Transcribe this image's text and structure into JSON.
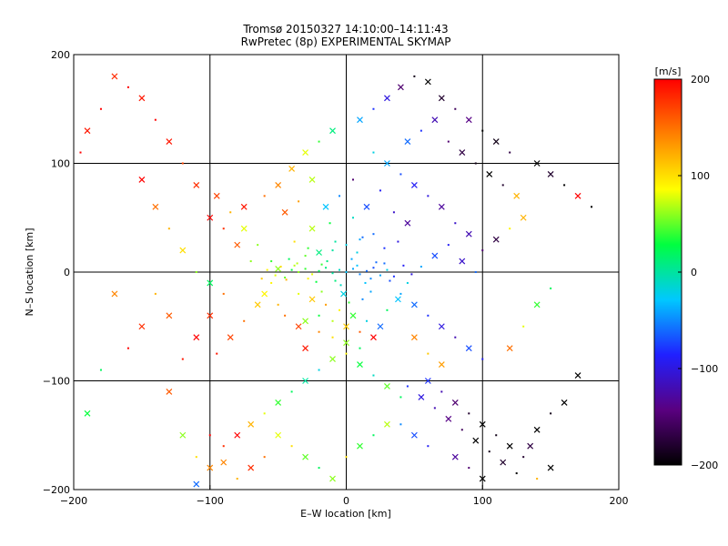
{
  "title": "Tromsø 20150327 14:10:00–14:11:43",
  "subtitle": "RwPretec (8p) EXPERIMENTAL SKYMAP",
  "chart_data": {
    "type": "scatter",
    "xlabel": "E–W location [km]",
    "ylabel": "N–S location [km]",
    "xlim": [
      -200,
      200
    ],
    "ylim": [
      -200,
      200
    ],
    "xticks": [
      -200,
      -100,
      0,
      100,
      200
    ],
    "yticks": [
      -200,
      -100,
      0,
      100,
      200
    ],
    "xtick_labels": [
      "−200",
      "−100",
      "0",
      "100",
      "200"
    ],
    "ytick_labels": [
      "−200",
      "−100",
      "0",
      "100",
      "200"
    ],
    "grid": true,
    "gridlines": [
      -100,
      0,
      100
    ],
    "marker_types": [
      "dot",
      "cross"
    ],
    "colorbar": {
      "label": "[m/s]",
      "min": -200,
      "max": 200,
      "ticks": [
        200,
        100,
        0,
        -100,
        -200
      ],
      "tick_labels": [
        "200",
        "100",
        "0",
        "−100",
        "−200"
      ],
      "colormap": [
        "#000000",
        "#5a0080",
        "#2020ff",
        "#00c8ff",
        "#00ff40",
        "#ffff00",
        "#ff8000",
        "#ff0000"
      ]
    },
    "points": [
      [
        -40,
        2,
        30,
        0
      ],
      [
        -35,
        0,
        60,
        0
      ],
      [
        -30,
        3,
        40,
        0
      ],
      [
        -25,
        -2,
        80,
        0
      ],
      [
        -20,
        1,
        20,
        0
      ],
      [
        -15,
        4,
        10,
        0
      ],
      [
        -10,
        -1,
        0,
        0
      ],
      [
        -5,
        2,
        -10,
        0
      ],
      [
        0,
        0,
        -30,
        0
      ],
      [
        5,
        3,
        -40,
        0
      ],
      [
        10,
        -2,
        -50,
        0
      ],
      [
        15,
        1,
        -60,
        0
      ],
      [
        20,
        4,
        -70,
        0
      ],
      [
        25,
        -3,
        -40,
        0
      ],
      [
        30,
        2,
        -20,
        0
      ],
      [
        -45,
        -5,
        50,
        0
      ],
      [
        -50,
        3,
        60,
        1
      ],
      [
        -38,
        6,
        70,
        0
      ],
      [
        -28,
        -6,
        90,
        0
      ],
      [
        -18,
        7,
        40,
        0
      ],
      [
        -8,
        -8,
        10,
        0
      ],
      [
        8,
        6,
        -30,
        0
      ],
      [
        18,
        -6,
        -50,
        0
      ],
      [
        28,
        8,
        -60,
        0
      ],
      [
        35,
        -4,
        -80,
        0
      ],
      [
        -42,
        12,
        20,
        0
      ],
      [
        -30,
        15,
        50,
        0
      ],
      [
        -20,
        18,
        10,
        1
      ],
      [
        -10,
        20,
        0,
        0
      ],
      [
        0,
        25,
        -20,
        0
      ],
      [
        10,
        30,
        -40,
        0
      ],
      [
        20,
        35,
        -60,
        0
      ],
      [
        -25,
        40,
        70,
        1
      ],
      [
        -12,
        45,
        30,
        0
      ],
      [
        5,
        50,
        -10,
        0
      ],
      [
        -35,
        -20,
        80,
        0
      ],
      [
        -25,
        -25,
        110,
        1
      ],
      [
        -15,
        -30,
        130,
        0
      ],
      [
        -5,
        -35,
        90,
        0
      ],
      [
        5,
        -40,
        40,
        1
      ],
      [
        15,
        -45,
        -20,
        0
      ],
      [
        25,
        -50,
        -60,
        1
      ],
      [
        -45,
        -40,
        150,
        0
      ],
      [
        -35,
        -50,
        170,
        1
      ],
      [
        -20,
        -55,
        140,
        0
      ],
      [
        -10,
        -60,
        100,
        0
      ],
      [
        0,
        -65,
        60,
        1
      ],
      [
        10,
        -70,
        20,
        0
      ],
      [
        -30,
        -70,
        190,
        1
      ],
      [
        -50,
        -30,
        120,
        0
      ],
      [
        -60,
        -20,
        90,
        1
      ],
      [
        -70,
        10,
        60,
        0
      ],
      [
        -80,
        25,
        160,
        1
      ],
      [
        -90,
        40,
        180,
        0
      ],
      [
        -100,
        50,
        200,
        1
      ],
      [
        -75,
        60,
        190,
        1
      ],
      [
        -60,
        70,
        150,
        0
      ],
      [
        -50,
        80,
        140,
        1
      ],
      [
        -40,
        95,
        120,
        1
      ],
      [
        -30,
        110,
        80,
        1
      ],
      [
        -20,
        120,
        40,
        0
      ],
      [
        -10,
        130,
        10,
        1
      ],
      [
        10,
        140,
        -40,
        1
      ],
      [
        20,
        150,
        -80,
        0
      ],
      [
        30,
        160,
        -100,
        1
      ],
      [
        40,
        170,
        -150,
        1
      ],
      [
        50,
        180,
        -190,
        0
      ],
      [
        60,
        175,
        -200,
        1
      ],
      [
        70,
        160,
        -180,
        1
      ],
      [
        80,
        150,
        -160,
        0
      ],
      [
        90,
        140,
        -140,
        1
      ],
      [
        100,
        130,
        -200,
        0
      ],
      [
        110,
        120,
        -190,
        1
      ],
      [
        120,
        110,
        -170,
        0
      ],
      [
        140,
        100,
        -200,
        1
      ],
      [
        150,
        90,
        -180,
        1
      ],
      [
        160,
        80,
        -200,
        0
      ],
      [
        170,
        70,
        200,
        1
      ],
      [
        180,
        60,
        -200,
        0
      ],
      [
        130,
        50,
        120,
        1
      ],
      [
        120,
        40,
        90,
        0
      ],
      [
        110,
        30,
        -170,
        1
      ],
      [
        100,
        20,
        -150,
        0
      ],
      [
        90,
        35,
        -120,
        1
      ],
      [
        80,
        45,
        -110,
        0
      ],
      [
        70,
        60,
        -130,
        1
      ],
      [
        60,
        70,
        -100,
        0
      ],
      [
        50,
        80,
        -90,
        1
      ],
      [
        40,
        90,
        -70,
        0
      ],
      [
        30,
        100,
        -40,
        1
      ],
      [
        20,
        110,
        -20,
        0
      ],
      [
        45,
        120,
        -60,
        1
      ],
      [
        55,
        130,
        -80,
        0
      ],
      [
        65,
        140,
        -120,
        1
      ],
      [
        75,
        120,
        -150,
        0
      ],
      [
        85,
        110,
        -170,
        1
      ],
      [
        95,
        100,
        -190,
        0
      ],
      [
        105,
        90,
        -200,
        1
      ],
      [
        115,
        80,
        -180,
        0
      ],
      [
        125,
        70,
        120,
        1
      ],
      [
        -110,
        80,
        180,
        1
      ],
      [
        -120,
        100,
        170,
        0
      ],
      [
        -130,
        120,
        190,
        1
      ],
      [
        -140,
        140,
        200,
        0
      ],
      [
        -150,
        160,
        190,
        1
      ],
      [
        -160,
        170,
        200,
        0
      ],
      [
        -170,
        180,
        180,
        1
      ],
      [
        -180,
        150,
        200,
        0
      ],
      [
        -190,
        130,
        190,
        1
      ],
      [
        -195,
        110,
        200,
        0
      ],
      [
        -150,
        85,
        200,
        1
      ],
      [
        -140,
        60,
        150,
        1
      ],
      [
        -130,
        40,
        120,
        0
      ],
      [
        -120,
        20,
        100,
        1
      ],
      [
        -110,
        0,
        60,
        0
      ],
      [
        -100,
        -10,
        20,
        1
      ],
      [
        -90,
        -20,
        150,
        0
      ],
      [
        -100,
        -40,
        180,
        1
      ],
      [
        -110,
        -60,
        200,
        1
      ],
      [
        -120,
        -80,
        190,
        0
      ],
      [
        -130,
        -40,
        160,
        1
      ],
      [
        -140,
        -20,
        120,
        0
      ],
      [
        -150,
        -50,
        180,
        1
      ],
      [
        -160,
        -70,
        200,
        0
      ],
      [
        -170,
        -20,
        140,
        1
      ],
      [
        -180,
        -90,
        20,
        0
      ],
      [
        -190,
        -130,
        30,
        1
      ],
      [
        -120,
        -150,
        60,
        1
      ],
      [
        -110,
        -170,
        100,
        0
      ],
      [
        -100,
        -180,
        140,
        1
      ],
      [
        -90,
        -160,
        180,
        0
      ],
      [
        -80,
        -150,
        200,
        1
      ],
      [
        -70,
        -140,
        120,
        1
      ],
      [
        -60,
        -130,
        80,
        0
      ],
      [
        -50,
        -120,
        40,
        1
      ],
      [
        -40,
        -110,
        20,
        0
      ],
      [
        -30,
        -100,
        0,
        1
      ],
      [
        -20,
        -90,
        -20,
        0
      ],
      [
        -10,
        -80,
        60,
        1
      ],
      [
        0,
        -75,
        90,
        0
      ],
      [
        10,
        -85,
        30,
        1
      ],
      [
        20,
        -95,
        -10,
        0
      ],
      [
        30,
        -105,
        50,
        1
      ],
      [
        40,
        -115,
        20,
        0
      ],
      [
        -50,
        -150,
        80,
        1
      ],
      [
        -40,
        -160,
        100,
        0
      ],
      [
        -30,
        -170,
        50,
        1
      ],
      [
        -20,
        -180,
        20,
        0
      ],
      [
        -10,
        -190,
        60,
        1
      ],
      [
        0,
        -170,
        100,
        0
      ],
      [
        10,
        -160,
        40,
        1
      ],
      [
        20,
        -150,
        20,
        0
      ],
      [
        30,
        -140,
        70,
        1
      ],
      [
        -60,
        -170,
        150,
        0
      ],
      [
        -70,
        -180,
        180,
        1
      ],
      [
        -80,
        -190,
        120,
        0
      ],
      [
        -90,
        -175,
        140,
        1
      ],
      [
        -110,
        -195,
        -60,
        1
      ],
      [
        -100,
        -150,
        200,
        0
      ],
      [
        -130,
        -110,
        160,
        1
      ],
      [
        60,
        -100,
        -80,
        1
      ],
      [
        70,
        -110,
        -120,
        0
      ],
      [
        80,
        -120,
        -150,
        1
      ],
      [
        90,
        -130,
        -180,
        0
      ],
      [
        100,
        -140,
        -200,
        1
      ],
      [
        110,
        -150,
        -190,
        0
      ],
      [
        120,
        -160,
        -200,
        1
      ],
      [
        130,
        -170,
        -180,
        0
      ],
      [
        140,
        -145,
        -200,
        1
      ],
      [
        150,
        -130,
        -190,
        0
      ],
      [
        160,
        -120,
        -200,
        1
      ],
      [
        170,
        -95,
        -200,
        1
      ],
      [
        95,
        -155,
        -200,
        1
      ],
      [
        105,
        -165,
        -190,
        0
      ],
      [
        115,
        -175,
        -180,
        1
      ],
      [
        125,
        -185,
        -200,
        0
      ],
      [
        135,
        -160,
        -170,
        1
      ],
      [
        85,
        -145,
        -160,
        0
      ],
      [
        75,
        -135,
        -140,
        1
      ],
      [
        65,
        -125,
        -120,
        0
      ],
      [
        55,
        -115,
        -100,
        1
      ],
      [
        45,
        -105,
        -80,
        0
      ],
      [
        80,
        -170,
        -130,
        1
      ],
      [
        90,
        -180,
        -150,
        0
      ],
      [
        100,
        -190,
        -200,
        1
      ],
      [
        60,
        -160,
        -90,
        0
      ],
      [
        50,
        -150,
        -70,
        1
      ],
      [
        40,
        -140,
        -50,
        0
      ],
      [
        150,
        -180,
        -200,
        1
      ],
      [
        140,
        -190,
        120,
        0
      ],
      [
        40,
        -20,
        -40,
        0
      ],
      [
        50,
        -30,
        -60,
        1
      ],
      [
        60,
        -40,
        -80,
        0
      ],
      [
        70,
        -50,
        -100,
        1
      ],
      [
        80,
        -60,
        -120,
        0
      ],
      [
        90,
        -70,
        -70,
        1
      ],
      [
        100,
        -80,
        -90,
        0
      ],
      [
        45,
        -10,
        -20,
        0
      ],
      [
        55,
        5,
        -40,
        0
      ],
      [
        65,
        15,
        -70,
        1
      ],
      [
        75,
        25,
        -90,
        0
      ],
      [
        85,
        10,
        -110,
        1
      ],
      [
        95,
        0,
        -60,
        0
      ],
      [
        50,
        -60,
        140,
        1
      ],
      [
        60,
        -75,
        110,
        0
      ],
      [
        70,
        -85,
        130,
        1
      ],
      [
        120,
        -70,
        150,
        1
      ],
      [
        130,
        -50,
        80,
        0
      ],
      [
        140,
        -30,
        40,
        1
      ],
      [
        150,
        -15,
        20,
        0
      ],
      [
        -55,
        10,
        40,
        0
      ],
      [
        -65,
        25,
        60,
        0
      ],
      [
        -75,
        40,
        80,
        1
      ],
      [
        -85,
        55,
        120,
        0
      ],
      [
        -95,
        70,
        170,
        1
      ],
      [
        -55,
        -10,
        90,
        0
      ],
      [
        -65,
        -30,
        110,
        1
      ],
      [
        -75,
        -45,
        150,
        0
      ],
      [
        -85,
        -60,
        170,
        1
      ],
      [
        -95,
        -75,
        190,
        0
      ],
      [
        -15,
        60,
        -30,
        1
      ],
      [
        -5,
        70,
        -50,
        0
      ],
      [
        15,
        60,
        -70,
        1
      ],
      [
        25,
        75,
        -90,
        0
      ],
      [
        -25,
        85,
        70,
        1
      ],
      [
        -35,
        65,
        130,
        0
      ],
      [
        -45,
        55,
        160,
        1
      ],
      [
        35,
        55,
        -110,
        0
      ],
      [
        45,
        45,
        -130,
        1
      ],
      [
        5,
        85,
        -150,
        0
      ],
      [
        -10,
        -45,
        70,
        0
      ],
      [
        0,
        -50,
        110,
        1
      ],
      [
        10,
        -55,
        160,
        0
      ],
      [
        20,
        -60,
        200,
        1
      ],
      [
        -20,
        -40,
        30,
        0
      ],
      [
        -30,
        -45,
        60,
        1
      ],
      [
        30,
        -35,
        20,
        0
      ],
      [
        38,
        -25,
        -30,
        1
      ],
      [
        12,
        -25,
        -50,
        0
      ],
      [
        -2,
        -20,
        -20,
        1
      ],
      [
        -48,
        5,
        100,
        0
      ],
      [
        -52,
        -3,
        80,
        0
      ],
      [
        -44,
        -7,
        120,
        0
      ],
      [
        -36,
        8,
        70,
        0
      ],
      [
        -22,
        -9,
        30,
        0
      ],
      [
        -14,
        10,
        10,
        0
      ],
      [
        -4,
        -12,
        -10,
        0
      ],
      [
        4,
        12,
        -40,
        0
      ],
      [
        14,
        -10,
        -30,
        0
      ],
      [
        22,
        9,
        -60,
        0
      ],
      [
        32,
        -8,
        -70,
        0
      ],
      [
        42,
        6,
        -90,
        0
      ],
      [
        -58,
        2,
        90,
        0
      ],
      [
        -62,
        -6,
        110,
        0
      ],
      [
        48,
        -2,
        -100,
        0
      ],
      [
        -28,
        22,
        40,
        0
      ],
      [
        -18,
        -18,
        60,
        0
      ],
      [
        8,
        18,
        -20,
        0
      ],
      [
        18,
        -18,
        -40,
        0
      ],
      [
        28,
        22,
        -80,
        0
      ],
      [
        -8,
        28,
        0,
        0
      ],
      [
        2,
        -28,
        40,
        0
      ],
      [
        12,
        32,
        -60,
        0
      ],
      [
        -38,
        28,
        100,
        0
      ],
      [
        38,
        28,
        -100,
        0
      ]
    ]
  }
}
